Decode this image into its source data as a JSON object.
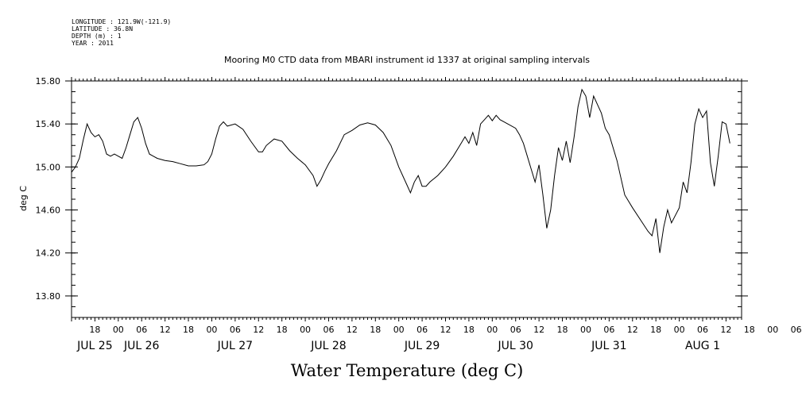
{
  "header": {
    "longitude": "LONGITUDE : 121.9W(-121.9)",
    "latitude": "LATITUDE : 36.8N",
    "depth": "DEPTH (m) : 1",
    "year": "YEAR : 2011",
    "title": "Mooring M0 CTD data from MBARI instrument id 1337 at original sampling intervals"
  },
  "chart_data": {
    "type": "line",
    "title": "Mooring M0 CTD data from MBARI instrument id 1337 at original sampling intervals",
    "xlabel": "Water Temperature (deg C)",
    "ylabel": "deg C",
    "x_range": [
      "2011-07-25T12:00",
      "2011-08-01T16:00"
    ],
    "ylim": [
      13.6,
      15.8
    ],
    "y_ticks": [
      "15.80",
      "15.40",
      "15.00",
      "14.60",
      "14.20",
      "13.80"
    ],
    "x_hour_ticks": [
      "18",
      "00",
      "06",
      "12",
      "18",
      "00",
      "06",
      "12",
      "18",
      "00",
      "06",
      "12",
      "18",
      "00",
      "06",
      "12",
      "18",
      "00",
      "06",
      "12",
      "18",
      "00",
      "06",
      "12",
      "18",
      "00",
      "06",
      "12",
      "18",
      "00",
      "06",
      "12",
      "18",
      "00",
      "06",
      "12"
    ],
    "x_day_labels": [
      {
        "label": "JUL 25",
        "time": "2011-07-25T18:00"
      },
      {
        "label": "JUL 26",
        "time": "2011-07-26T06:00"
      },
      {
        "label": "JUL 27",
        "time": "2011-07-27T06:00"
      },
      {
        "label": "JUL 28",
        "time": "2011-07-28T06:00"
      },
      {
        "label": "JUL 29",
        "time": "2011-07-29T06:00"
      },
      {
        "label": "JUL 30",
        "time": "2011-07-30T06:00"
      },
      {
        "label": "JUL 31",
        "time": "2011-07-31T06:00"
      },
      {
        "label": "AUG  1",
        "time": "2011-08-01T06:00"
      }
    ],
    "grid": false,
    "series": [
      {
        "color": "#000000",
        "points": [
          [
            "2011-07-25T12:00",
            14.95
          ],
          [
            "2011-07-25T13:00",
            15.0
          ],
          [
            "2011-07-25T14:00",
            15.08
          ],
          [
            "2011-07-25T15:00",
            15.25
          ],
          [
            "2011-07-25T16:00",
            15.4
          ],
          [
            "2011-07-25T17:00",
            15.32
          ],
          [
            "2011-07-25T18:00",
            15.28
          ],
          [
            "2011-07-25T19:00",
            15.3
          ],
          [
            "2011-07-25T20:00",
            15.24
          ],
          [
            "2011-07-25T21:00",
            15.12
          ],
          [
            "2011-07-25T22:00",
            15.1
          ],
          [
            "2011-07-25T23:00",
            15.12
          ],
          [
            "2011-07-26T00:00",
            15.1
          ],
          [
            "2011-07-26T01:00",
            15.08
          ],
          [
            "2011-07-26T02:00",
            15.18
          ],
          [
            "2011-07-26T03:00",
            15.3
          ],
          [
            "2011-07-26T04:00",
            15.42
          ],
          [
            "2011-07-26T05:00",
            15.46
          ],
          [
            "2011-07-26T06:00",
            15.36
          ],
          [
            "2011-07-26T07:00",
            15.22
          ],
          [
            "2011-07-26T08:00",
            15.12
          ],
          [
            "2011-07-26T09:00",
            15.1
          ],
          [
            "2011-07-26T10:00",
            15.08
          ],
          [
            "2011-07-26T12:00",
            15.06
          ],
          [
            "2011-07-26T14:00",
            15.05
          ],
          [
            "2011-07-26T16:00",
            15.03
          ],
          [
            "2011-07-26T18:00",
            15.01
          ],
          [
            "2011-07-26T20:00",
            15.01
          ],
          [
            "2011-07-26T22:00",
            15.02
          ],
          [
            "2011-07-26T23:00",
            15.05
          ],
          [
            "2011-07-27T00:00",
            15.12
          ],
          [
            "2011-07-27T01:00",
            15.26
          ],
          [
            "2011-07-27T02:00",
            15.38
          ],
          [
            "2011-07-27T03:00",
            15.42
          ],
          [
            "2011-07-27T04:00",
            15.38
          ],
          [
            "2011-07-27T06:00",
            15.4
          ],
          [
            "2011-07-27T08:00",
            15.35
          ],
          [
            "2011-07-27T10:00",
            15.24
          ],
          [
            "2011-07-27T12:00",
            15.14
          ],
          [
            "2011-07-27T13:00",
            15.14
          ],
          [
            "2011-07-27T14:00",
            15.2
          ],
          [
            "2011-07-27T16:00",
            15.26
          ],
          [
            "2011-07-27T18:00",
            15.24
          ],
          [
            "2011-07-27T20:00",
            15.15
          ],
          [
            "2011-07-27T22:00",
            15.08
          ],
          [
            "2011-07-28T00:00",
            15.02
          ],
          [
            "2011-07-28T02:00",
            14.92
          ],
          [
            "2011-07-28T03:00",
            14.82
          ],
          [
            "2011-07-28T04:00",
            14.88
          ],
          [
            "2011-07-28T05:00",
            14.96
          ],
          [
            "2011-07-28T06:00",
            15.03
          ],
          [
            "2011-07-28T08:00",
            15.15
          ],
          [
            "2011-07-28T10:00",
            15.3
          ],
          [
            "2011-07-28T12:00",
            15.34
          ],
          [
            "2011-07-28T14:00",
            15.39
          ],
          [
            "2011-07-28T16:00",
            15.41
          ],
          [
            "2011-07-28T18:00",
            15.39
          ],
          [
            "2011-07-28T20:00",
            15.32
          ],
          [
            "2011-07-28T22:00",
            15.2
          ],
          [
            "2011-07-29T00:00",
            15.0
          ],
          [
            "2011-07-29T02:00",
            14.84
          ],
          [
            "2011-07-29T03:00",
            14.76
          ],
          [
            "2011-07-29T04:00",
            14.86
          ],
          [
            "2011-07-29T05:00",
            14.92
          ],
          [
            "2011-07-29T06:00",
            14.82
          ],
          [
            "2011-07-29T07:00",
            14.82
          ],
          [
            "2011-07-29T08:00",
            14.86
          ],
          [
            "2011-07-29T10:00",
            14.92
          ],
          [
            "2011-07-29T12:00",
            15.0
          ],
          [
            "2011-07-29T14:00",
            15.1
          ],
          [
            "2011-07-29T16:00",
            15.22
          ],
          [
            "2011-07-29T17:00",
            15.28
          ],
          [
            "2011-07-29T18:00",
            15.22
          ],
          [
            "2011-07-29T19:00",
            15.32
          ],
          [
            "2011-07-29T20:00",
            15.2
          ],
          [
            "2011-07-29T21:00",
            15.4
          ],
          [
            "2011-07-29T22:00",
            15.44
          ],
          [
            "2011-07-29T23:00",
            15.48
          ],
          [
            "2011-07-30T00:00",
            15.43
          ],
          [
            "2011-07-30T01:00",
            15.48
          ],
          [
            "2011-07-30T02:00",
            15.44
          ],
          [
            "2011-07-30T04:00",
            15.4
          ],
          [
            "2011-07-30T06:00",
            15.36
          ],
          [
            "2011-07-30T07:00",
            15.3
          ],
          [
            "2011-07-30T08:00",
            15.22
          ],
          [
            "2011-07-30T09:00",
            15.1
          ],
          [
            "2011-07-30T10:00",
            14.98
          ],
          [
            "2011-07-30T11:00",
            14.86
          ],
          [
            "2011-07-30T12:00",
            15.02
          ],
          [
            "2011-07-30T13:00",
            14.74
          ],
          [
            "2011-07-30T14:00",
            14.43
          ],
          [
            "2011-07-30T15:00",
            14.6
          ],
          [
            "2011-07-30T16:00",
            14.92
          ],
          [
            "2011-07-30T17:00",
            15.18
          ],
          [
            "2011-07-30T18:00",
            15.06
          ],
          [
            "2011-07-30T19:00",
            15.24
          ],
          [
            "2011-07-30T20:00",
            15.04
          ],
          [
            "2011-07-30T21:00",
            15.28
          ],
          [
            "2011-07-30T22:00",
            15.56
          ],
          [
            "2011-07-30T23:00",
            15.72
          ],
          [
            "2011-07-31T00:00",
            15.66
          ],
          [
            "2011-07-31T01:00",
            15.46
          ],
          [
            "2011-07-31T02:00",
            15.66
          ],
          [
            "2011-07-31T03:00",
            15.58
          ],
          [
            "2011-07-31T04:00",
            15.5
          ],
          [
            "2011-07-31T05:00",
            15.36
          ],
          [
            "2011-07-31T06:00",
            15.3
          ],
          [
            "2011-07-31T08:00",
            15.06
          ],
          [
            "2011-07-31T10:00",
            14.74
          ],
          [
            "2011-07-31T12:00",
            14.62
          ],
          [
            "2011-07-31T16:00",
            14.4
          ],
          [
            "2011-07-31T17:00",
            14.36
          ],
          [
            "2011-07-31T18:00",
            14.52
          ],
          [
            "2011-07-31T19:00",
            14.2
          ],
          [
            "2011-07-31T20:00",
            14.44
          ],
          [
            "2011-07-31T21:00",
            14.6
          ],
          [
            "2011-07-31T22:00",
            14.48
          ],
          [
            "2011-08-01T00:00",
            14.62
          ],
          [
            "2011-08-01T01:00",
            14.86
          ],
          [
            "2011-08-01T02:00",
            14.76
          ],
          [
            "2011-08-01T03:00",
            15.04
          ],
          [
            "2011-08-01T04:00",
            15.4
          ],
          [
            "2011-08-01T05:00",
            15.54
          ],
          [
            "2011-08-01T06:00",
            15.46
          ],
          [
            "2011-08-01T07:00",
            15.52
          ],
          [
            "2011-08-01T08:00",
            15.04
          ],
          [
            "2011-08-01T09:00",
            14.82
          ],
          [
            "2011-08-01T10:00",
            15.1
          ],
          [
            "2011-08-01T11:00",
            15.42
          ],
          [
            "2011-08-01T12:00",
            15.4
          ],
          [
            "2011-08-01T13:00",
            15.22
          ]
        ]
      }
    ]
  }
}
